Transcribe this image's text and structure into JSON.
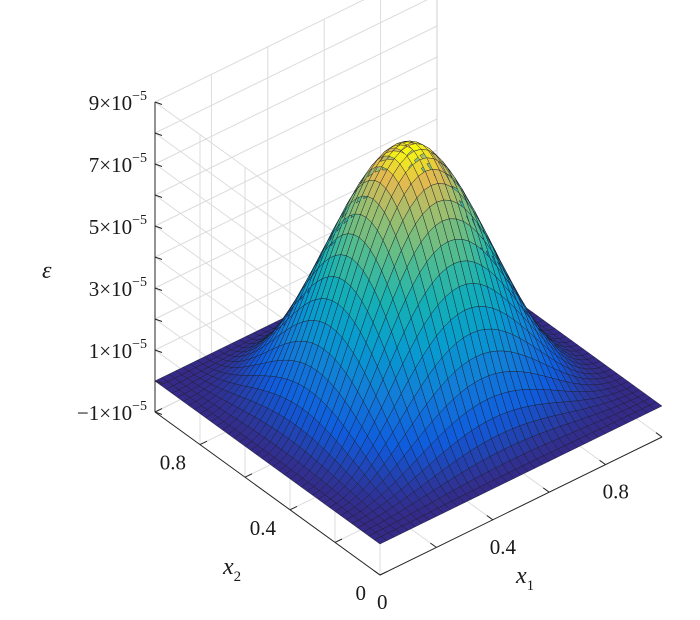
{
  "chart_data": {
    "type": "surface",
    "title": "",
    "xlabel": "x",
    "xlabel_sub": "1",
    "ylabel": "x",
    "ylabel_sub": "2",
    "zlabel": "ε",
    "xlim": [
      0,
      1
    ],
    "ylim": [
      0,
      1
    ],
    "zlim": [
      -1e-05,
      9e-05
    ],
    "x_ticks": [
      {
        "value": 0,
        "label": "0"
      },
      {
        "value": 0.4,
        "label": "0.4"
      },
      {
        "value": 0.8,
        "label": "0.8"
      }
    ],
    "y_ticks": [
      {
        "value": 0,
        "label": "0"
      },
      {
        "value": 0.4,
        "label": "0.4"
      },
      {
        "value": 0.8,
        "label": "0.8"
      }
    ],
    "z_ticks": [
      {
        "value": -1e-05,
        "mant": "−1×10",
        "exp": "−5"
      },
      {
        "value": 1e-05,
        "mant": "1×10",
        "exp": "−5"
      },
      {
        "value": 3e-05,
        "mant": "3×10",
        "exp": "−5"
      },
      {
        "value": 5e-05,
        "mant": "5×10",
        "exp": "−5"
      },
      {
        "value": 7e-05,
        "mant": "7×10",
        "exp": "−5"
      },
      {
        "value": 9e-05,
        "mant": "9×10",
        "exp": "−5"
      }
    ],
    "surface": {
      "function": "peak * sin(pi*x1)^2 * sin(pi*x2)^2",
      "peak": 8e-05,
      "grid": 41
    },
    "colormap": "parula",
    "grid": true
  }
}
